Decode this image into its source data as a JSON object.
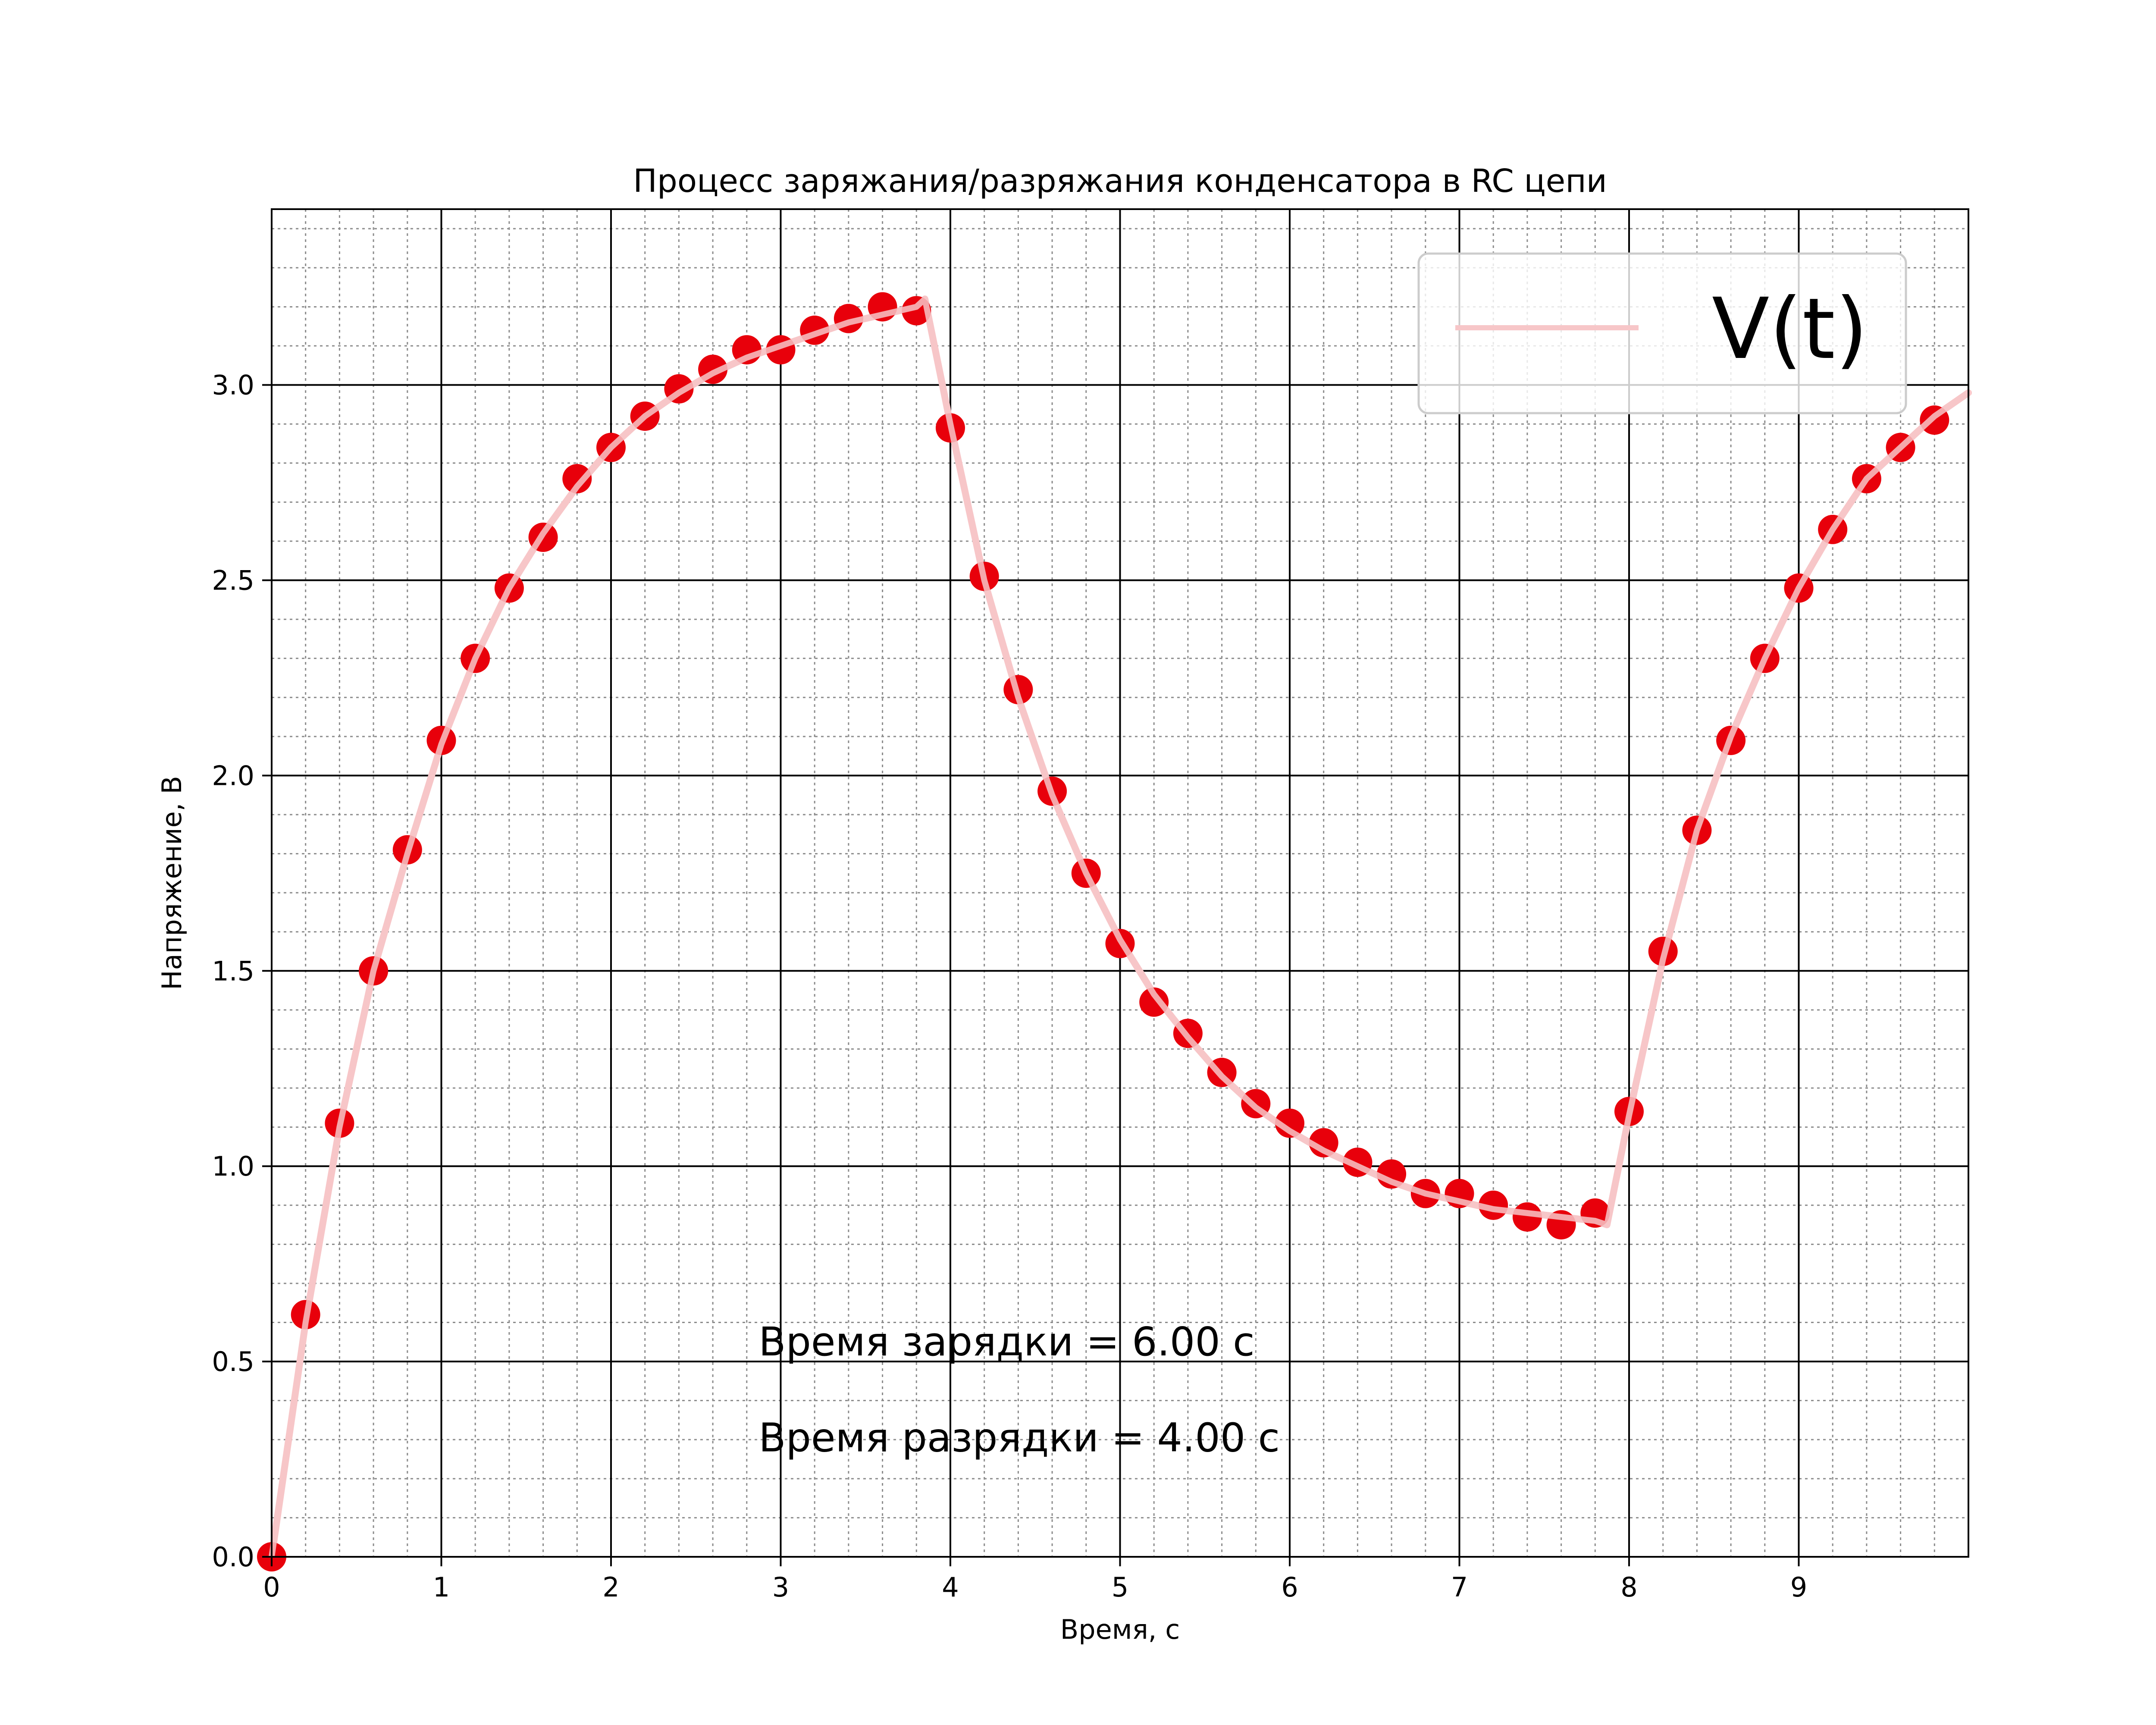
{
  "chart_data": {
    "type": "scatter",
    "title": "Процесс заряжания/разряжания конденсатора в RC цепи",
    "xlabel": "Время, с",
    "ylabel": "Напряжение, В",
    "xlim": [
      0,
      10
    ],
    "ylim": [
      0,
      3.45
    ],
    "xticks": [
      0,
      1,
      2,
      3,
      4,
      5,
      6,
      7,
      8,
      9
    ],
    "yticks": [
      0.0,
      0.5,
      1.0,
      1.5,
      2.0,
      2.5,
      3.0
    ],
    "grid": {
      "major": true,
      "minor": true
    },
    "legend": {
      "position": "top-right",
      "entries": [
        "V(t)"
      ]
    },
    "annotations": [
      "Время зарядки = 6.00 с",
      "Время разрядки = 4.00 с"
    ],
    "colors": {
      "points": "#e8000b",
      "line": "#f7c6c8"
    },
    "series": [
      {
        "name": "V(t)",
        "kind": "line",
        "x": [
          0,
          0.2,
          0.4,
          0.6,
          0.8,
          1.0,
          1.2,
          1.4,
          1.6,
          1.8,
          2.0,
          2.2,
          2.4,
          2.6,
          2.8,
          3.0,
          3.2,
          3.4,
          3.6,
          3.8,
          3.85,
          4.0,
          4.2,
          4.4,
          4.6,
          4.8,
          5.0,
          5.2,
          5.4,
          5.6,
          5.8,
          6.0,
          6.2,
          6.4,
          6.6,
          6.8,
          7.0,
          7.2,
          7.4,
          7.6,
          7.8,
          7.87,
          8.0,
          8.2,
          8.4,
          8.6,
          8.8,
          9.0,
          9.2,
          9.4,
          9.6,
          9.8,
          10.0
        ],
        "y": [
          0,
          0.6,
          1.1,
          1.5,
          1.8,
          2.08,
          2.3,
          2.48,
          2.62,
          2.74,
          2.84,
          2.92,
          2.98,
          3.03,
          3.07,
          3.1,
          3.13,
          3.16,
          3.18,
          3.2,
          3.22,
          2.9,
          2.5,
          2.2,
          1.95,
          1.75,
          1.58,
          1.44,
          1.33,
          1.23,
          1.15,
          1.09,
          1.04,
          1.0,
          0.96,
          0.93,
          0.91,
          0.89,
          0.88,
          0.87,
          0.86,
          0.85,
          1.13,
          1.53,
          1.86,
          2.1,
          2.3,
          2.48,
          2.63,
          2.76,
          2.84,
          2.92,
          2.98
        ]
      },
      {
        "name": "",
        "kind": "points",
        "x": [
          0,
          0.2,
          0.4,
          0.6,
          0.8,
          1.0,
          1.2,
          1.4,
          1.6,
          1.8,
          2.0,
          2.2,
          2.4,
          2.6,
          2.8,
          3.0,
          3.2,
          3.4,
          3.6,
          3.8,
          4.0,
          4.2,
          4.4,
          4.6,
          4.8,
          5.0,
          5.2,
          5.4,
          5.6,
          5.8,
          6.0,
          6.2,
          6.4,
          6.6,
          6.8,
          7.0,
          7.2,
          7.4,
          7.6,
          7.8,
          8.0,
          8.2,
          8.4,
          8.6,
          8.8,
          9.0,
          9.2,
          9.4,
          9.6,
          9.8
        ],
        "y": [
          0.0,
          0.62,
          1.11,
          1.5,
          1.81,
          2.09,
          2.3,
          2.48,
          2.61,
          2.76,
          2.84,
          2.92,
          2.99,
          3.04,
          3.09,
          3.09,
          3.14,
          3.17,
          3.2,
          3.19,
          2.89,
          2.51,
          2.22,
          1.96,
          1.75,
          1.57,
          1.42,
          1.34,
          1.24,
          1.16,
          1.11,
          1.06,
          1.01,
          0.98,
          0.93,
          0.93,
          0.9,
          0.87,
          0.85,
          0.88,
          1.14,
          1.55,
          1.86,
          2.09,
          2.3,
          2.48,
          2.63,
          2.76,
          2.84,
          2.91
        ]
      }
    ]
  }
}
